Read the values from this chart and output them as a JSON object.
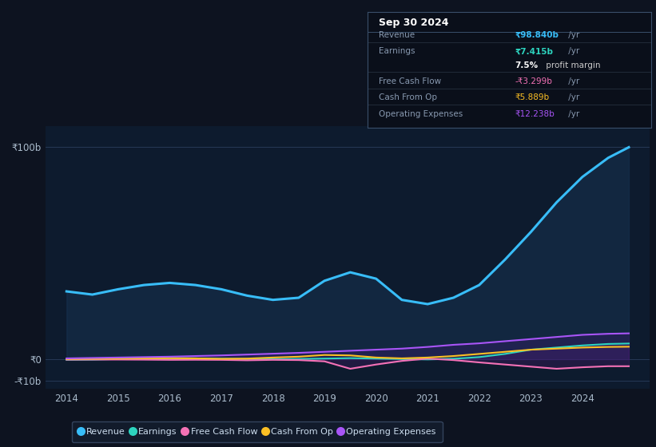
{
  "background_color": "#0d1320",
  "plot_bg_color": "#0d1b2e",
  "ytick_labels": [
    "₹100b",
    "₹0",
    "-₹10b"
  ],
  "ytick_vals": [
    100,
    0,
    -10
  ],
  "xlim": [
    2013.6,
    2025.3
  ],
  "ylim": [
    -14,
    110
  ],
  "years": [
    2014.0,
    2014.5,
    2015.0,
    2015.5,
    2016.0,
    2016.5,
    2017.0,
    2017.5,
    2018.0,
    2018.5,
    2019.0,
    2019.5,
    2020.0,
    2020.5,
    2021.0,
    2021.5,
    2022.0,
    2022.5,
    2023.0,
    2023.5,
    2024.0,
    2024.5,
    2024.9
  ],
  "revenue": [
    32,
    30.5,
    33,
    35,
    36,
    35,
    33,
    30,
    28,
    29,
    37,
    41,
    38,
    28,
    26,
    29,
    35,
    47,
    60,
    74,
    86,
    95,
    100
  ],
  "earnings": [
    -0.3,
    -0.2,
    0.1,
    0.3,
    0.5,
    0.4,
    0.2,
    0.1,
    0.05,
    0.1,
    0.3,
    0.5,
    0.3,
    0.1,
    -0.1,
    0.2,
    1.0,
    2.5,
    4.5,
    5.5,
    6.5,
    7.2,
    7.4
  ],
  "free_cash_flow": [
    -0.2,
    -0.15,
    -0.15,
    -0.2,
    -0.3,
    -0.25,
    -0.3,
    -0.5,
    -0.3,
    -0.4,
    -1.0,
    -4.5,
    -2.5,
    -0.8,
    0.3,
    -0.4,
    -1.5,
    -2.5,
    -3.5,
    -4.5,
    -3.8,
    -3.3,
    -3.3
  ],
  "cash_from_op": [
    0.1,
    0.2,
    0.3,
    0.4,
    0.5,
    0.4,
    0.2,
    0.3,
    0.8,
    1.2,
    2.0,
    1.8,
    0.8,
    0.4,
    0.8,
    1.5,
    2.5,
    3.5,
    4.5,
    5.0,
    5.5,
    5.8,
    5.9
  ],
  "operating_expenses": [
    0.4,
    0.6,
    0.8,
    1.0,
    1.2,
    1.5,
    1.8,
    2.2,
    2.6,
    3.0,
    3.5,
    4.0,
    4.5,
    5.0,
    5.8,
    6.8,
    7.5,
    8.5,
    9.5,
    10.5,
    11.5,
    12.0,
    12.2
  ],
  "revenue_color": "#38bdf8",
  "earnings_color": "#2dd4bf",
  "free_cash_flow_color": "#f472b6",
  "cash_from_op_color": "#fbbf24",
  "operating_expenses_color": "#a855f7",
  "revenue_fill_color": "#1a3a5c",
  "grid_color": "#2d4060",
  "text_color": "#8899aa",
  "xtick_years": [
    2014,
    2015,
    2016,
    2017,
    2018,
    2019,
    2020,
    2021,
    2022,
    2023,
    2024
  ],
  "legend_items": [
    "Revenue",
    "Earnings",
    "Free Cash Flow",
    "Cash From Op",
    "Operating Expenses"
  ],
  "info_box_title": "Sep 30 2024",
  "info_rows": [
    {
      "label": "Revenue",
      "value": "₹98.840b",
      "suffix": " /yr",
      "value_color": "#38bdf8",
      "bold": true
    },
    {
      "label": "Earnings",
      "value": "₹7.415b",
      "suffix": " /yr",
      "value_color": "#2dd4bf",
      "bold": true
    },
    {
      "label": "",
      "value": "7.5%",
      "suffix": " profit margin",
      "value_color": "#ffffff",
      "bold": true
    },
    {
      "label": "Free Cash Flow",
      "value": "-₹3.299b",
      "suffix": " /yr",
      "value_color": "#f472b6",
      "bold": false
    },
    {
      "label": "Cash From Op",
      "value": "₹5.889b",
      "suffix": " /yr",
      "value_color": "#fbbf24",
      "bold": false
    },
    {
      "label": "Operating Expenses",
      "value": "₹12.238b",
      "suffix": " /yr",
      "value_color": "#a855f7",
      "bold": false
    }
  ]
}
